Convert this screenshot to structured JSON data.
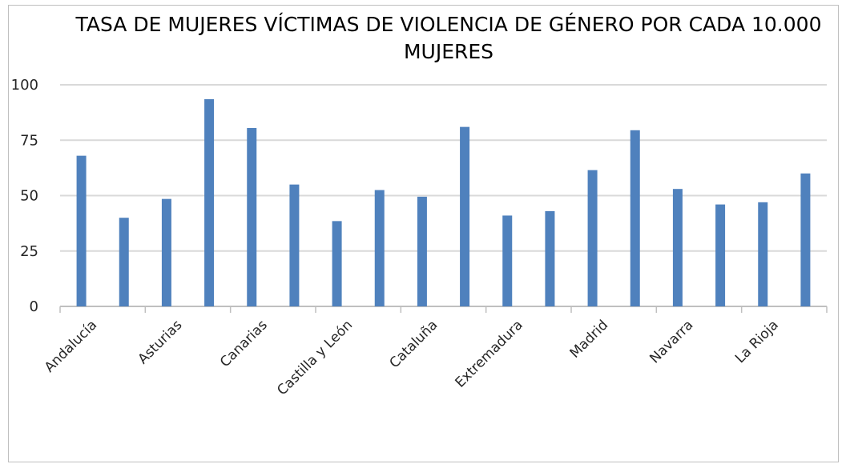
{
  "chart_data": {
    "type": "bar",
    "title": "TASA DE MUJERES VÍCTIMAS DE VIOLENCIA DE GÉNERO POR CADA 10.000 MUJERES",
    "xlabel": "",
    "ylabel": "",
    "ylim": [
      0,
      100
    ],
    "yticks": [
      0,
      25,
      50,
      75,
      100
    ],
    "grid": true,
    "bar_color": "#4f81bd",
    "categories": [
      "Andalucía",
      "",
      "Asturias",
      "",
      "Canarias",
      "",
      "Castilla y León",
      "",
      "Cataluña",
      "",
      "Extremadura",
      "",
      "Madrid",
      "",
      "Navarra",
      "",
      "La Rioja",
      ""
    ],
    "values": [
      68,
      40,
      48.5,
      93.5,
      80.5,
      55,
      38.5,
      52.5,
      49.5,
      81,
      41,
      43,
      61.5,
      79.5,
      53,
      46,
      47,
      60
    ]
  }
}
